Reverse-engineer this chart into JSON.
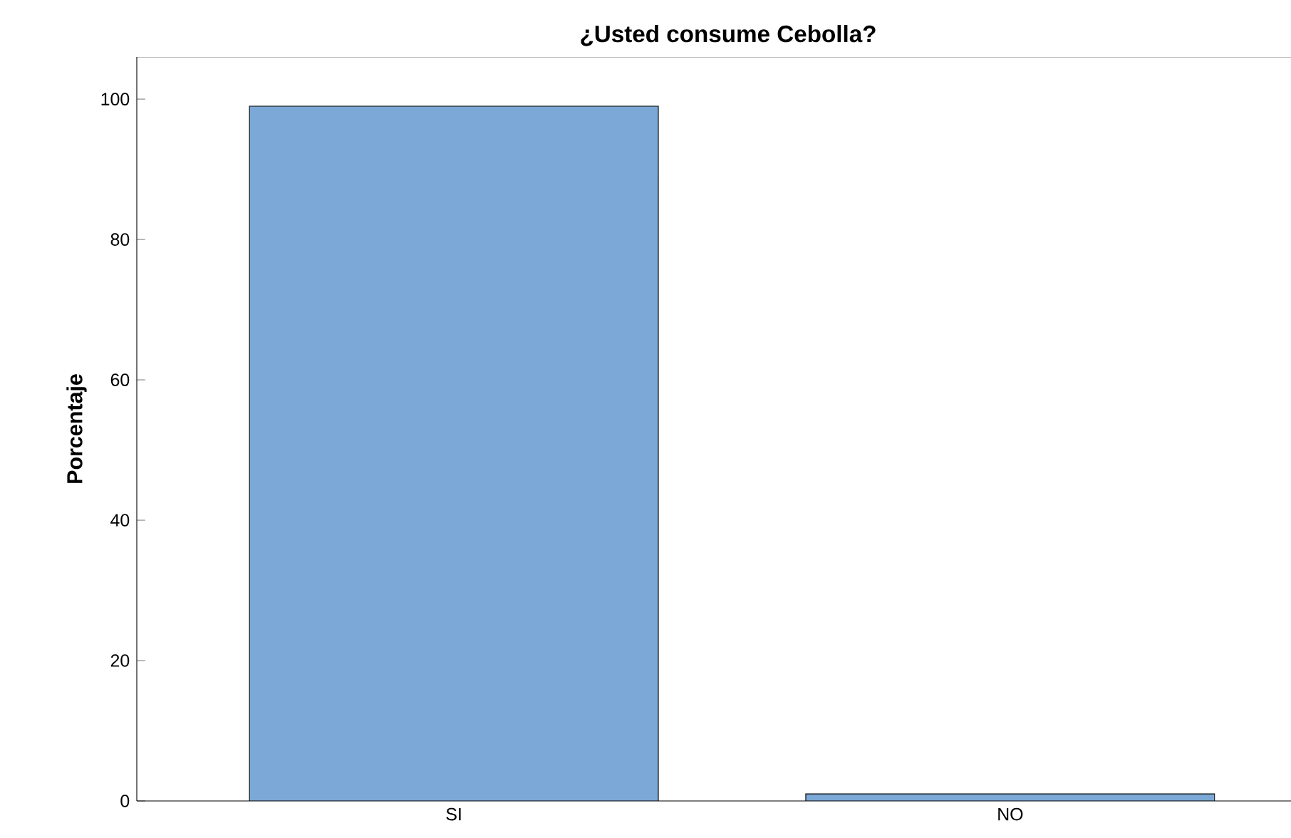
{
  "chart_data": {
    "type": "bar",
    "title": "¿Usted consume Cebolla?",
    "ylabel": "Porcentaje",
    "categories": [
      "SI",
      "NO"
    ],
    "values": [
      99,
      1
    ],
    "color": "#7ba8d6",
    "ylim": [
      0,
      106
    ],
    "yticks": [
      0,
      20,
      40,
      60,
      80,
      100
    ],
    "grid": false
  }
}
